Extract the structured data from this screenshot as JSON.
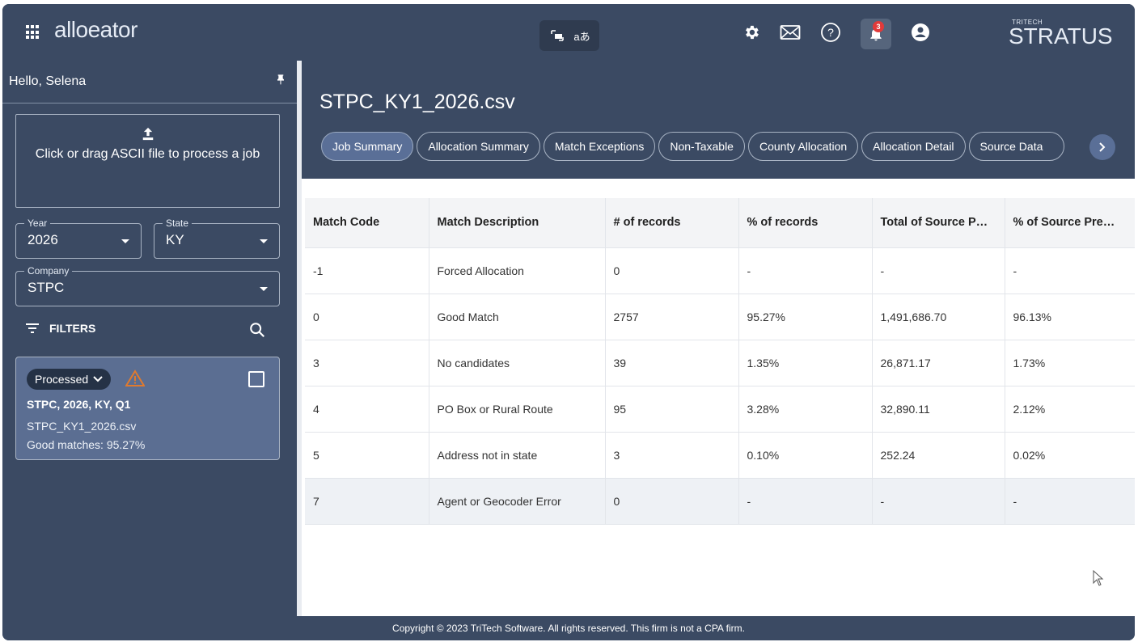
{
  "app": {
    "logo_text": "alloeator",
    "brand_small": "TRITECH",
    "brand_big": "STRATUS",
    "notification_count": "3",
    "center_tool_2": "aあ"
  },
  "sidebar": {
    "greeting": "Hello, Selena",
    "upload_text": "Click or drag ASCII file to process a job",
    "year": {
      "label": "Year",
      "value": "2026"
    },
    "state": {
      "label": "State",
      "value": "KY"
    },
    "company": {
      "label": "Company",
      "value": "STPC"
    },
    "filters_label": "FILTERS",
    "job_card": {
      "status": "Processed",
      "title": "STPC, 2026, KY, Q1",
      "file": "STPC_KY1_2026.csv",
      "good_matches": "Good matches: 95.27%"
    }
  },
  "main": {
    "file_title": "STPC_KY1_2026.csv",
    "tabs": [
      {
        "label": "Job Summary",
        "active": true
      },
      {
        "label": "Allocation Summary"
      },
      {
        "label": "Match Exceptions"
      },
      {
        "label": "Non-Taxable"
      },
      {
        "label": "County Allocation"
      },
      {
        "label": "Allocation Detail"
      },
      {
        "label": "Source Data"
      }
    ],
    "table": {
      "columns": [
        "Match Code",
        "Match Description",
        "# of records",
        "% of records",
        "Total of Source P…",
        "% of Source Pre…"
      ],
      "rows": [
        [
          "-1",
          "Forced Allocation",
          "0",
          "-",
          "-",
          "-"
        ],
        [
          "0",
          "Good Match",
          "2757",
          "95.27%",
          "1,491,686.70",
          "96.13%"
        ],
        [
          "3",
          "No candidates",
          "39",
          "1.35%",
          "26,871.17",
          "1.73%"
        ],
        [
          "4",
          "PO Box or Rural Route",
          "95",
          "3.28%",
          "32,890.11",
          "2.12%"
        ],
        [
          "5",
          "Address not in state",
          "3",
          "0.10%",
          "252.24",
          "0.02%"
        ],
        [
          "7",
          "Agent or Geocoder Error",
          "0",
          "-",
          "-",
          "-"
        ]
      ]
    }
  },
  "footer": {
    "copyright": "Copyright © 2023 TriTech Software. All rights reserved. This firm is not a CPA firm."
  },
  "colors": {
    "header_bg": "#3b4a63",
    "card_bg": "#5b6e92",
    "active_tab": "#5a6f97",
    "warning": "#e07a2e",
    "badge": "#e23a3a"
  }
}
